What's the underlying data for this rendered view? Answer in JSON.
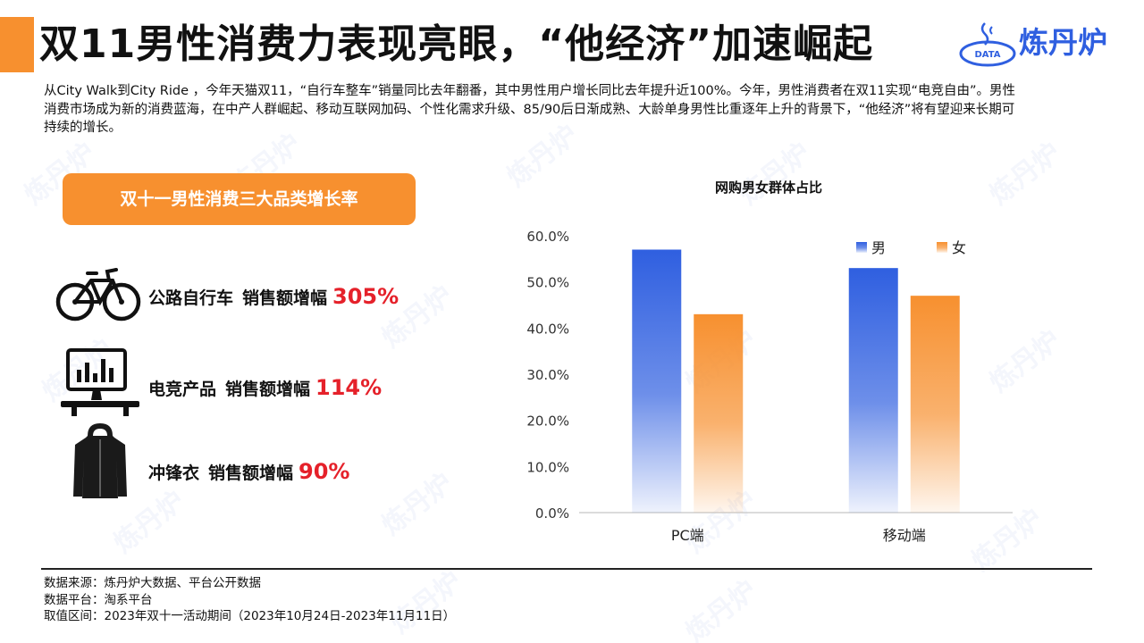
{
  "header": {
    "title": "双11男性消费力表现亮眼，“他经济”加速崛起",
    "logo_text": "炼丹炉",
    "logo_badge": "DATA"
  },
  "intro": {
    "text": "从City Walk到City Ride ，今年天猫双11，“自行车整车”销量同比去年翻番，其中男性用户增长同比去年提升近100%。今年，男性消费者在双11实现“电竞自由”。男性消费市场成为新的消费蓝海，在中产人群崛起、移动互联网加码、个性化需求升级、85/90后日渐成熟、大龄单身男性比重逐年上升的背景下，“他经济”将有望迎来长期可持续的增长。"
  },
  "categories": {
    "header": "双十一男性消费三大品类增长率",
    "items": [
      {
        "name": "公路自行车",
        "metric": "销售额增幅",
        "value": "305%",
        "icon": "bicycle-icon"
      },
      {
        "name": "电竞产品",
        "metric": "销售额增幅",
        "value": "114%",
        "icon": "computer-icon"
      },
      {
        "name": "冲锋衣",
        "metric": "销售额增幅",
        "value": "90%",
        "icon": "jacket-icon"
      }
    ]
  },
  "chart_data": {
    "type": "bar",
    "title": "网购男女群体占比",
    "categories": [
      "PC端",
      "移动端"
    ],
    "series": [
      {
        "name": "男",
        "values": [
          0.57,
          0.53
        ],
        "color": "#2f5fe0"
      },
      {
        "name": "女",
        "values": [
          0.43,
          0.47
        ],
        "color": "#f7902f"
      }
    ],
    "ylim": [
      0,
      0.6
    ],
    "yticks": [
      0,
      0.1,
      0.2,
      0.3,
      0.4,
      0.5,
      0.6
    ],
    "ytick_labels": [
      "0.0%",
      "10.0%",
      "20.0%",
      "30.0%",
      "40.0%",
      "50.0%",
      "60.0%"
    ],
    "grid": false,
    "legend": "top-right"
  },
  "footer": {
    "source": "数据来源：炼丹炉大数据、平台公开数据",
    "platform": "数据平台：淘系平台",
    "period": "取值区间：2023年双十一活动期间（2023年10月24日-2023年11月11日）"
  },
  "colors": {
    "accent": "#f7902f",
    "brand": "#2f5fe0",
    "highlight": "#e5212a"
  }
}
